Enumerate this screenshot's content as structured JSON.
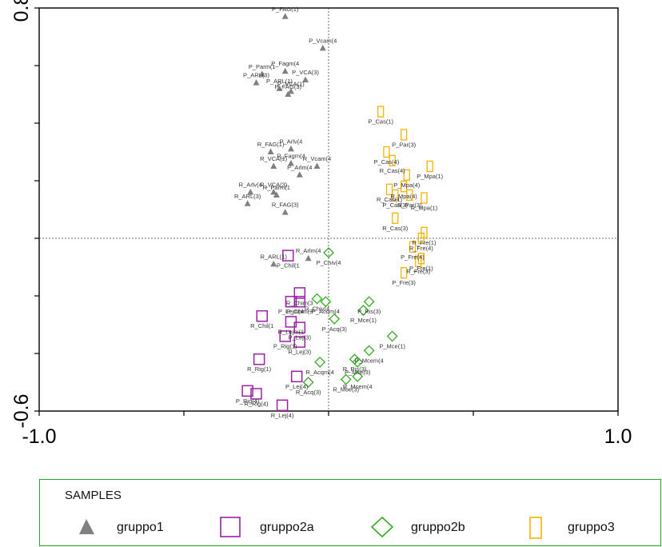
{
  "chart_data": {
    "type": "scatter",
    "xlim": [
      -1.0,
      1.0
    ],
    "ylim": [
      -0.6,
      0.8
    ],
    "x_tick_labels": [
      "-1.0",
      "1.0"
    ],
    "y_tick_labels": [
      "0.8",
      "-0.6"
    ],
    "reference_lines": {
      "x": 0,
      "y": 0
    },
    "legend": {
      "title": "SAMPLES",
      "placement": "bottom",
      "entries": [
        {
          "name": "gruppo1",
          "marker": "triangle",
          "color": "#808080"
        },
        {
          "name": "gruppo2a",
          "marker": "square",
          "color": "#9b1fa8"
        },
        {
          "name": "gruppo2b",
          "marker": "diamond",
          "color": "#33aa22"
        },
        {
          "name": "gruppo3",
          "marker": "rect",
          "color": "#f5b300"
        }
      ]
    },
    "series": [
      {
        "name": "gruppo1",
        "points": [
          {
            "label": "P_FAG(1)",
            "x": -0.15,
            "y": 0.77
          },
          {
            "label": "P_Vcam(4",
            "x": -0.02,
            "y": 0.66
          },
          {
            "label": "P_Fagm(4",
            "x": -0.15,
            "y": 0.58
          },
          {
            "label": "P_Parm(1",
            "x": -0.23,
            "y": 0.57
          },
          {
            "label": "P_VCA(3)",
            "x": -0.08,
            "y": 0.55
          },
          {
            "label": "P_ARL(3)",
            "x": -0.25,
            "y": 0.54
          },
          {
            "label": "P_VCA(1)",
            "x": -0.13,
            "y": 0.51
          },
          {
            "label": "P_ARL(1)",
            "x": -0.17,
            "y": 0.52
          },
          {
            "label": "P_FAG(3)",
            "x": -0.14,
            "y": 0.5
          },
          {
            "label": "P_Arlv(4",
            "x": -0.13,
            "y": 0.31
          },
          {
            "label": "R_FAG(1)",
            "x": -0.2,
            "y": 0.3
          },
          {
            "label": "R_VCA(1)",
            "x": -0.19,
            "y": 0.25
          },
          {
            "label": "R_Fagm(4",
            "x": -0.13,
            "y": 0.26
          },
          {
            "label": "R_Vcam(4",
            "x": -0.04,
            "y": 0.25
          },
          {
            "label": "P_Arlm(4",
            "x": -0.1,
            "y": 0.22
          },
          {
            "label": "R_Arlv(4",
            "x": -0.27,
            "y": 0.16
          },
          {
            "label": "R_VCA(3)",
            "x": -0.19,
            "y": 0.16
          },
          {
            "label": "R_Parm(1",
            "x": -0.18,
            "y": 0.15
          },
          {
            "label": "R_ARL(3)",
            "x": -0.28,
            "y": 0.12
          },
          {
            "label": "R_FAG(3)",
            "x": -0.15,
            "y": 0.09
          },
          {
            "label": "R_ARL(1)",
            "x": -0.19,
            "y": -0.09
          },
          {
            "label": "R_Arlm(4",
            "x": -0.07,
            "y": -0.07
          }
        ]
      },
      {
        "name": "gruppo2a",
        "points": [
          {
            "label": "P_Chil(1",
            "x": -0.14,
            "y": -0.06
          },
          {
            "label": "R_Chim(3",
            "x": -0.1,
            "y": -0.19
          },
          {
            "label": "P_Lejm(4",
            "x": -0.13,
            "y": -0.22
          },
          {
            "label": "P_Chim(3",
            "x": -0.1,
            "y": -0.22
          },
          {
            "label": "R_Chil(1",
            "x": -0.23,
            "y": -0.27
          },
          {
            "label": "R_Lejm(1",
            "x": -0.13,
            "y": -0.29
          },
          {
            "label": "P_Lej(3)",
            "x": -0.1,
            "y": -0.31
          },
          {
            "label": "P_Rig(1)",
            "x": -0.15,
            "y": -0.34
          },
          {
            "label": "R_Lej(3)",
            "x": -0.1,
            "y": -0.36
          },
          {
            "label": "R_Rig(1)",
            "x": -0.24,
            "y": -0.42
          },
          {
            "label": "P_Lej(4)",
            "x": -0.11,
            "y": -0.48
          },
          {
            "label": "P_Rig(4)",
            "x": -0.28,
            "y": -0.53
          },
          {
            "label": "R_Rig(4)",
            "x": -0.25,
            "y": -0.54
          },
          {
            "label": "R_Lej(4)",
            "x": -0.16,
            "y": -0.58
          }
        ]
      },
      {
        "name": "gruppo2b",
        "points": [
          {
            "label": "P_Chiv(4",
            "x": 0.0,
            "y": -0.05
          },
          {
            "label": "R_Chiv(4",
            "x": -0.04,
            "y": -0.21
          },
          {
            "label": "P_Acqm(4",
            "x": -0.01,
            "y": -0.22
          },
          {
            "label": "P_Acq(3)",
            "x": 0.02,
            "y": -0.28
          },
          {
            "label": "P_Ris(3)",
            "x": 0.14,
            "y": -0.22
          },
          {
            "label": "R_Mce(1)",
            "x": 0.12,
            "y": -0.25
          },
          {
            "label": "P_Mce(1)",
            "x": 0.22,
            "y": -0.34
          },
          {
            "label": "P_Mcem(4",
            "x": 0.14,
            "y": -0.39
          },
          {
            "label": "R_Ris(3)",
            "x": 0.09,
            "y": -0.42
          },
          {
            "label": "R_Acqm(4",
            "x": -0.03,
            "y": -0.43
          },
          {
            "label": "P_Mce(3)",
            "x": 0.1,
            "y": -0.43
          },
          {
            "label": "R_Mce(3)",
            "x": 0.06,
            "y": -0.49
          },
          {
            "label": "R_Mcem(4",
            "x": 0.1,
            "y": -0.48
          },
          {
            "label": "R_Acq(3)",
            "x": -0.07,
            "y": -0.5
          }
        ]
      },
      {
        "name": "gruppo3",
        "points": [
          {
            "label": "P_Cas(1)",
            "x": 0.18,
            "y": 0.44
          },
          {
            "label": "P_Par(3)",
            "x": 0.26,
            "y": 0.36
          },
          {
            "label": "P_Cas(4)",
            "x": 0.2,
            "y": 0.3
          },
          {
            "label": "R_Cas(4)",
            "x": 0.22,
            "y": 0.27
          },
          {
            "label": "P_Mpa(1)",
            "x": 0.35,
            "y": 0.25
          },
          {
            "label": "P_Mpa(4)",
            "x": 0.27,
            "y": 0.22
          },
          {
            "label": "R_Mpa(4)",
            "x": 0.26,
            "y": 0.18
          },
          {
            "label": "R_Cas(1)",
            "x": 0.21,
            "y": 0.17
          },
          {
            "label": "P_Cas(3)",
            "x": 0.23,
            "y": 0.15
          },
          {
            "label": "R_Par(3)",
            "x": 0.28,
            "y": 0.15
          },
          {
            "label": "R_Mpa(1)",
            "x": 0.33,
            "y": 0.14
          },
          {
            "label": "R_Cas(3)",
            "x": 0.23,
            "y": 0.07
          },
          {
            "label": "R_Fre(1)",
            "x": 0.33,
            "y": 0.02
          },
          {
            "label": "R_Fre(4)",
            "x": 0.32,
            "y": 0.0
          },
          {
            "label": "P_Fre(4)",
            "x": 0.29,
            "y": -0.03
          },
          {
            "label": "P_Fre(1)",
            "x": 0.32,
            "y": -0.07
          },
          {
            "label": "R_Fre(3)",
            "x": 0.31,
            "y": -0.08
          },
          {
            "label": "P_Fre(3)",
            "x": 0.26,
            "y": -0.12
          }
        ]
      }
    ]
  }
}
